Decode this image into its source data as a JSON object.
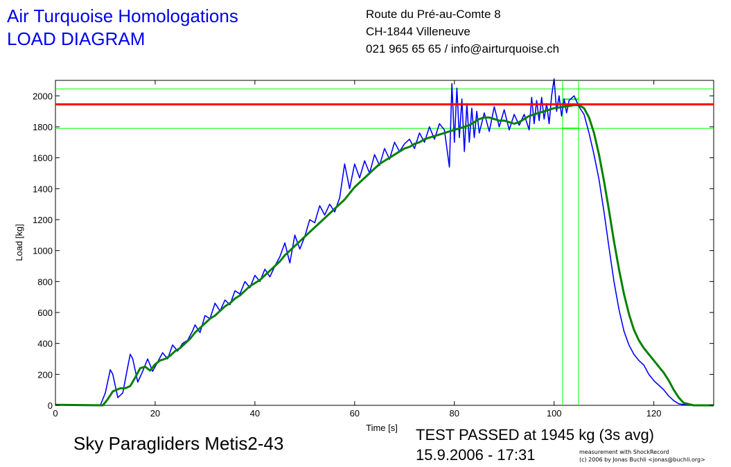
{
  "header": {
    "title_line1": "Air Turquoise Homologations",
    "title_line2": "LOAD DIAGRAM",
    "address_line1": "Route du Pré-au-Comte 8",
    "address_line2": "CH-1844 Villeneuve",
    "address_line3": "021 965 65 65 / info@airturquoise.ch"
  },
  "footer": {
    "glider_name": "Sky Paragliders Metis2-43",
    "result": "TEST PASSED at 1945 kg (3s avg)",
    "datetime": "15.9.2006 - 17:31",
    "credit_line1": "measurement with ShockRecord",
    "credit_line2": "(c) 2006 by Jonas Buchli <jonas@buchli.org>"
  },
  "colors": {
    "raw": "#0000ff",
    "avg": "#008000",
    "max_line": "#ff0000",
    "limit_lines": "#00ff00",
    "axes": "#000000"
  },
  "chart_data": {
    "type": "line",
    "title": "",
    "xlabel": "Time [s]",
    "ylabel": "Load [kg]",
    "xlim": [
      0,
      132
    ],
    "ylim": [
      0,
      2100
    ],
    "xticks": [
      0,
      20,
      40,
      60,
      80,
      100,
      120
    ],
    "yticks": [
      0,
      200,
      400,
      600,
      800,
      1000,
      1200,
      1400,
      1600,
      1800,
      2000
    ],
    "grid": false,
    "series": [
      {
        "color": "#0000ff",
        "points": [
          [
            0,
            5
          ],
          [
            9,
            0
          ],
          [
            10,
            80
          ],
          [
            11,
            230
          ],
          [
            11.5,
            200
          ],
          [
            12.5,
            50
          ],
          [
            13.5,
            80
          ],
          [
            14.5,
            250
          ],
          [
            15,
            330
          ],
          [
            15.5,
            300
          ],
          [
            16.5,
            150
          ],
          [
            17.5,
            220
          ],
          [
            18.5,
            300
          ],
          [
            19.5,
            220
          ],
          [
            20.5,
            280
          ],
          [
            21.5,
            340
          ],
          [
            22.5,
            300
          ],
          [
            23.5,
            390
          ],
          [
            24.5,
            350
          ],
          [
            25.5,
            400
          ],
          [
            26.5,
            420
          ],
          [
            27.5,
            480
          ],
          [
            28,
            520
          ],
          [
            29,
            470
          ],
          [
            30,
            580
          ],
          [
            31,
            560
          ],
          [
            32,
            660
          ],
          [
            33,
            610
          ],
          [
            34,
            680
          ],
          [
            35,
            650
          ],
          [
            36,
            740
          ],
          [
            37,
            720
          ],
          [
            38,
            800
          ],
          [
            39,
            760
          ],
          [
            40,
            840
          ],
          [
            41,
            800
          ],
          [
            42,
            880
          ],
          [
            43,
            830
          ],
          [
            44,
            900
          ],
          [
            45,
            960
          ],
          [
            46,
            1050
          ],
          [
            47,
            920
          ],
          [
            48,
            1100
          ],
          [
            49,
            1010
          ],
          [
            50,
            1090
          ],
          [
            51,
            1200
          ],
          [
            52,
            1180
          ],
          [
            53,
            1290
          ],
          [
            54,
            1230
          ],
          [
            55,
            1300
          ],
          [
            56,
            1250
          ],
          [
            57,
            1340
          ],
          [
            58,
            1560
          ],
          [
            59,
            1400
          ],
          [
            60,
            1560
          ],
          [
            61,
            1470
          ],
          [
            62,
            1580
          ],
          [
            63,
            1500
          ],
          [
            64,
            1620
          ],
          [
            65,
            1550
          ],
          [
            66,
            1660
          ],
          [
            67,
            1590
          ],
          [
            68,
            1700
          ],
          [
            69,
            1640
          ],
          [
            70,
            1690
          ],
          [
            71,
            1720
          ],
          [
            72,
            1660
          ],
          [
            73,
            1760
          ],
          [
            74,
            1700
          ],
          [
            75,
            1800
          ],
          [
            76,
            1720
          ],
          [
            77,
            1820
          ],
          [
            78,
            1780
          ],
          [
            79,
            1540
          ],
          [
            79.5,
            2080
          ],
          [
            80,
            1700
          ],
          [
            80.5,
            2050
          ],
          [
            81,
            1730
          ],
          [
            81.5,
            1980
          ],
          [
            82,
            1640
          ],
          [
            82.5,
            1950
          ],
          [
            83,
            1700
          ],
          [
            83.5,
            1920
          ],
          [
            84,
            1730
          ],
          [
            84.5,
            1900
          ],
          [
            85,
            1760
          ],
          [
            86,
            1890
          ],
          [
            87,
            1770
          ],
          [
            88,
            1930
          ],
          [
            89,
            1800
          ],
          [
            90,
            1910
          ],
          [
            91,
            1780
          ],
          [
            92,
            1880
          ],
          [
            93,
            1810
          ],
          [
            94,
            1880
          ],
          [
            95,
            1780
          ],
          [
            95.5,
            1990
          ],
          [
            96,
            1820
          ],
          [
            96.5,
            1970
          ],
          [
            97,
            1840
          ],
          [
            97.5,
            1990
          ],
          [
            98,
            1850
          ],
          [
            98.5,
            1950
          ],
          [
            99,
            1820
          ],
          [
            99.5,
            2000
          ],
          [
            100,
            2110
          ],
          [
            100.5,
            1900
          ],
          [
            101,
            2000
          ],
          [
            101.5,
            1870
          ],
          [
            102,
            1980
          ],
          [
            102.5,
            1890
          ],
          [
            103,
            1970
          ],
          [
            104,
            2000
          ],
          [
            105,
            1930
          ],
          [
            106,
            1880
          ],
          [
            107,
            1760
          ],
          [
            108,
            1620
          ],
          [
            109,
            1460
          ],
          [
            110,
            1250
          ],
          [
            111,
            1020
          ],
          [
            112,
            800
          ],
          [
            113,
            620
          ],
          [
            114,
            480
          ],
          [
            115,
            390
          ],
          [
            116,
            330
          ],
          [
            117,
            290
          ],
          [
            118,
            260
          ],
          [
            119,
            200
          ],
          [
            120,
            160
          ],
          [
            121,
            130
          ],
          [
            122,
            100
          ],
          [
            123,
            60
          ],
          [
            124,
            30
          ],
          [
            125,
            10
          ],
          [
            127,
            0
          ],
          [
            132,
            0
          ]
        ]
      },
      {
        "color": "#008000",
        "points": [
          [
            0,
            3
          ],
          [
            9.5,
            0
          ],
          [
            10.5,
            40
          ],
          [
            11.5,
            90
          ],
          [
            13,
            110
          ],
          [
            14,
            110
          ],
          [
            15,
            125
          ],
          [
            16,
            180
          ],
          [
            17,
            240
          ],
          [
            18,
            250
          ],
          [
            19,
            225
          ],
          [
            20,
            265
          ],
          [
            21,
            290
          ],
          [
            22,
            300
          ],
          [
            23,
            320
          ],
          [
            24,
            350
          ],
          [
            25,
            370
          ],
          [
            26,
            400
          ],
          [
            27,
            430
          ],
          [
            28,
            470
          ],
          [
            29,
            500
          ],
          [
            30,
            530
          ],
          [
            31,
            560
          ],
          [
            32,
            580
          ],
          [
            33,
            610
          ],
          [
            34,
            640
          ],
          [
            35,
            660
          ],
          [
            36,
            690
          ],
          [
            37,
            710
          ],
          [
            38,
            740
          ],
          [
            39,
            770
          ],
          [
            40,
            790
          ],
          [
            41,
            810
          ],
          [
            42,
            840
          ],
          [
            43,
            870
          ],
          [
            44,
            900
          ],
          [
            45,
            930
          ],
          [
            46,
            970
          ],
          [
            47,
            1000
          ],
          [
            48,
            1030
          ],
          [
            49,
            1060
          ],
          [
            50,
            1090
          ],
          [
            51,
            1120
          ],
          [
            52,
            1150
          ],
          [
            53,
            1180
          ],
          [
            54,
            1210
          ],
          [
            55,
            1240
          ],
          [
            56,
            1270
          ],
          [
            57,
            1300
          ],
          [
            58,
            1330
          ],
          [
            59,
            1370
          ],
          [
            60,
            1410
          ],
          [
            61,
            1440
          ],
          [
            62,
            1470
          ],
          [
            63,
            1500
          ],
          [
            64,
            1530
          ],
          [
            65,
            1560
          ],
          [
            66,
            1580
          ],
          [
            67,
            1600
          ],
          [
            68,
            1620
          ],
          [
            69,
            1640
          ],
          [
            70,
            1660
          ],
          [
            71,
            1670
          ],
          [
            72,
            1690
          ],
          [
            73,
            1700
          ],
          [
            74,
            1720
          ],
          [
            75,
            1730
          ],
          [
            76,
            1740
          ],
          [
            77,
            1750
          ],
          [
            78,
            1760
          ],
          [
            79,
            1770
          ],
          [
            80,
            1780
          ],
          [
            81,
            1790
          ],
          [
            82,
            1800
          ],
          [
            83,
            1810
          ],
          [
            84,
            1830
          ],
          [
            85,
            1850
          ],
          [
            86,
            1860
          ],
          [
            87,
            1860
          ],
          [
            88,
            1850
          ],
          [
            89,
            1840
          ],
          [
            90,
            1840
          ],
          [
            91,
            1830
          ],
          [
            92,
            1820
          ],
          [
            93,
            1830
          ],
          [
            94,
            1850
          ],
          [
            95,
            1870
          ],
          [
            96,
            1880
          ],
          [
            97,
            1890
          ],
          [
            98,
            1900
          ],
          [
            99,
            1910
          ],
          [
            100,
            1920
          ],
          [
            101,
            1925
          ],
          [
            102,
            1930
          ],
          [
            103,
            1935
          ],
          [
            104,
            1940
          ],
          [
            105,
            1940
          ],
          [
            106,
            1920
          ],
          [
            107,
            1860
          ],
          [
            108,
            1760
          ],
          [
            109,
            1620
          ],
          [
            110,
            1450
          ],
          [
            111,
            1260
          ],
          [
            112,
            1060
          ],
          [
            113,
            880
          ],
          [
            114,
            720
          ],
          [
            115,
            590
          ],
          [
            116,
            490
          ],
          [
            117,
            420
          ],
          [
            118,
            370
          ],
          [
            119,
            330
          ],
          [
            120,
            290
          ],
          [
            121,
            250
          ],
          [
            122,
            210
          ],
          [
            123,
            160
          ],
          [
            124,
            100
          ],
          [
            125,
            50
          ],
          [
            126,
            15
          ],
          [
            128,
            0
          ],
          [
            132,
            0
          ]
        ]
      }
    ],
    "reference_lines": {
      "max_load": 1945,
      "upper_limit": 2045,
      "lower_limit": 1790,
      "window_start_time": 102.4,
      "window_end_time": 104.9,
      "window_left_time": 101.7,
      "window_right_time": 104.9
    }
  }
}
